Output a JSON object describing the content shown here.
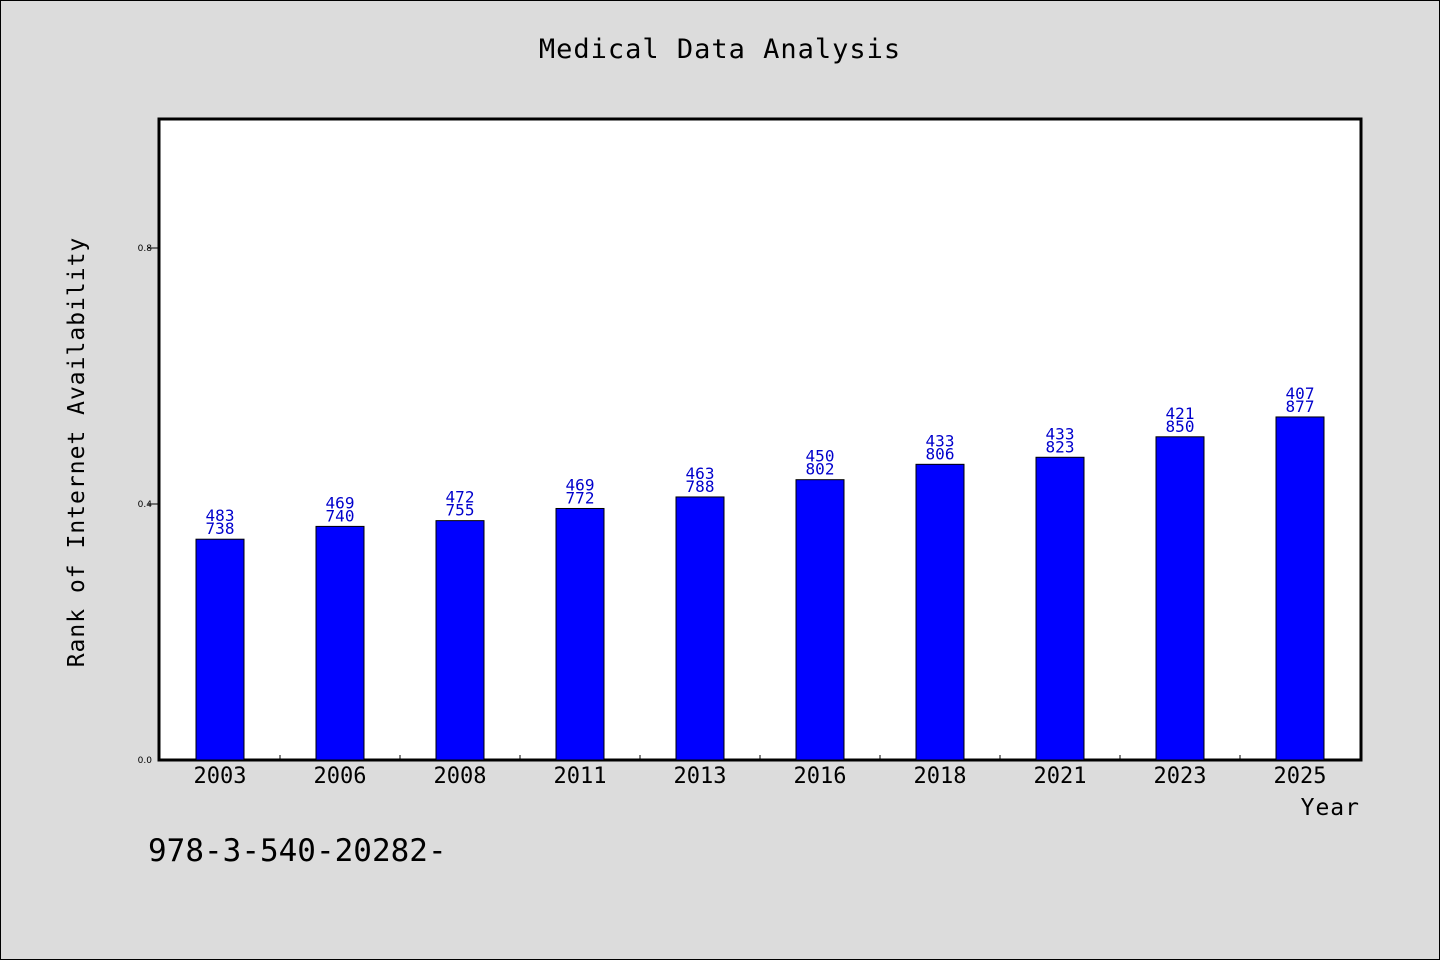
{
  "chart_data": {
    "type": "bar",
    "title": "Medical Data Analysis",
    "xlabel": "Year",
    "ylabel": "Rank of Internet Availability",
    "categories": [
      "2003",
      "2006",
      "2008",
      "2011",
      "2013",
      "2016",
      "2018",
      "2021",
      "2023",
      "2025"
    ],
    "values": [
      0.345,
      0.365,
      0.374,
      0.393,
      0.411,
      0.438,
      0.462,
      0.473,
      0.505,
      0.536
    ],
    "data_labels": [
      [
        "483",
        "738"
      ],
      [
        "469",
        "740"
      ],
      [
        "472",
        "755"
      ],
      [
        "469",
        "772"
      ],
      [
        "463",
        "788"
      ],
      [
        "450",
        "802"
      ],
      [
        "433",
        "806"
      ],
      [
        "433",
        "823"
      ],
      [
        "421",
        "850"
      ],
      [
        "407",
        "877"
      ]
    ],
    "ylim": [
      0,
      1.0
    ],
    "yticks": [
      0.0,
      0.4,
      0.8
    ],
    "ytick_labels": [
      "0.0",
      "0.4",
      "0.8"
    ],
    "grid": false,
    "bar_color": "#0000ff",
    "label_color": "#0000cc",
    "background_color": "#dcdcdc",
    "plot_background_color": "#ffffff"
  },
  "footer": {
    "code": "978-3-540-20282-"
  }
}
